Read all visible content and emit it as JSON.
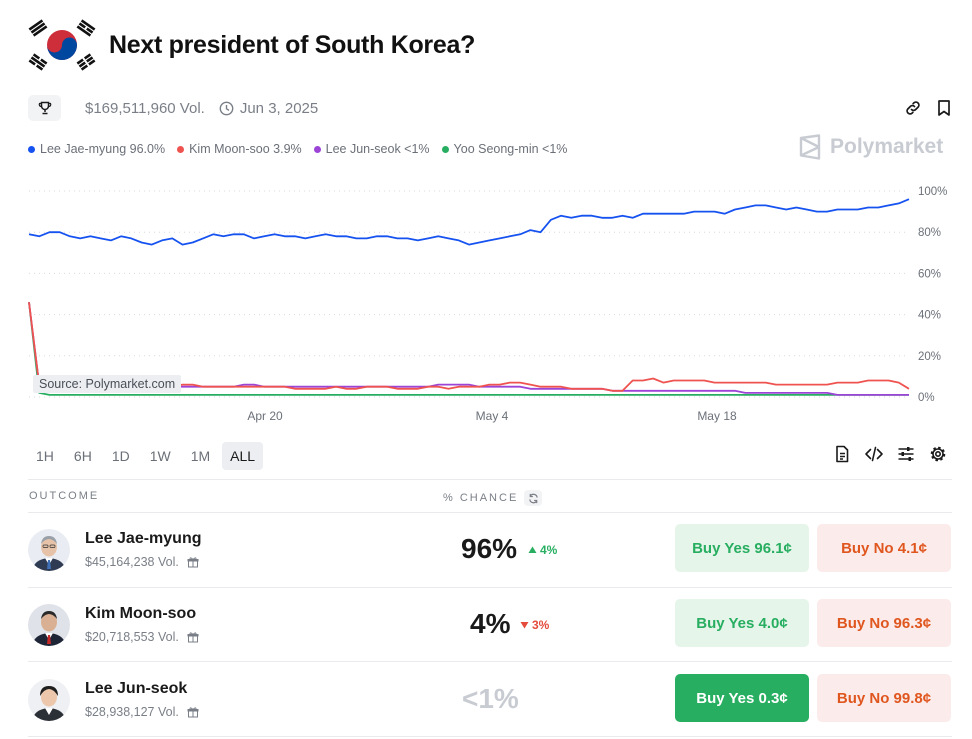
{
  "market": {
    "title": "Next president of South Korea?",
    "volume": "$169,511,960 Vol.",
    "end_date": "Jun 3, 2025",
    "brand": "Polymarket"
  },
  "legend": [
    {
      "label": "Lee Jae-myung 96.0%",
      "color": "#1652f0"
    },
    {
      "label": "Kim Moon-soo 3.9%",
      "color": "#ef5350"
    },
    {
      "label": "Lee Jun-seok <1%",
      "color": "#9b44d6"
    },
    {
      "label": "Yoo Seong-min <1%",
      "color": "#27ae60"
    }
  ],
  "chart_data": {
    "type": "line",
    "x_tick_labels": [
      "Apr 20",
      "May 4",
      "May 18"
    ],
    "y_tick_labels": [
      "100%",
      "80%",
      "60%",
      "40%",
      "20%",
      "0%"
    ],
    "ylim": [
      0,
      100
    ],
    "grid": "dotted horizontal",
    "source_label": "Source: Polymarket.com",
    "series": [
      {
        "name": "Lee Jae-myung",
        "color": "#1652f0",
        "values": [
          79,
          78,
          80,
          80,
          78,
          77,
          78,
          77,
          76,
          78,
          77,
          75,
          74,
          76,
          77,
          74,
          75,
          77,
          79,
          78,
          79,
          79,
          77,
          78,
          79,
          78,
          78,
          77,
          78,
          79,
          78,
          78,
          77,
          77,
          78,
          78,
          77,
          77,
          76,
          77,
          78,
          77,
          76,
          74,
          75,
          76,
          77,
          78,
          79,
          81,
          80,
          86,
          88,
          87,
          88,
          88,
          87,
          87,
          88,
          87,
          89,
          89,
          89,
          89,
          89,
          90,
          90,
          90,
          89,
          91,
          92,
          93,
          93,
          92,
          91,
          92,
          91,
          90,
          90,
          91,
          91,
          91,
          92,
          92,
          93,
          94,
          96
        ]
      },
      {
        "name": "Kim Moon-soo",
        "color": "#ef5350",
        "values": [
          46,
          6,
          5,
          5,
          5,
          5,
          5,
          5,
          5,
          4,
          4,
          5,
          5,
          5,
          5,
          6,
          6,
          5,
          5,
          5,
          5,
          5,
          5,
          5,
          5,
          5,
          4,
          4,
          4,
          4,
          5,
          4,
          4,
          5,
          5,
          5,
          4,
          4,
          4,
          5,
          5,
          4,
          5,
          5,
          5,
          6,
          6,
          7,
          7,
          6,
          5,
          5,
          5,
          4,
          4,
          4,
          4,
          3,
          3,
          8,
          8,
          9,
          7,
          8,
          8,
          8,
          8,
          7,
          7,
          7,
          7,
          7,
          7,
          6,
          6,
          6,
          6,
          6,
          6,
          7,
          7,
          7,
          8,
          8,
          8,
          7,
          4
        ]
      },
      {
        "name": "Lee Jun-seok",
        "color": "#9b44d6",
        "values": [
          46,
          6,
          6,
          6,
          6,
          6,
          5,
          5,
          5,
          5,
          5,
          5,
          5,
          5,
          5,
          5,
          5,
          5,
          5,
          5,
          5,
          6,
          6,
          5,
          5,
          5,
          5,
          5,
          5,
          5,
          5,
          5,
          5,
          5,
          5,
          5,
          5,
          5,
          5,
          5,
          6,
          6,
          6,
          6,
          5,
          5,
          5,
          5,
          5,
          4,
          4,
          4,
          4,
          4,
          4,
          4,
          4,
          3,
          3,
          3,
          3,
          3,
          3,
          3,
          3,
          3,
          3,
          3,
          3,
          3,
          2,
          2,
          2,
          2,
          2,
          2,
          2,
          2,
          2,
          1,
          1,
          1,
          1,
          1,
          1,
          1,
          1
        ]
      },
      {
        "name": "Yoo Seong-min",
        "color": "#27ae60",
        "values": [
          46,
          2,
          1,
          1,
          1,
          1,
          1,
          1,
          1,
          1,
          1,
          1,
          1,
          1,
          1,
          1,
          1,
          1,
          1,
          1,
          1,
          1,
          1,
          1,
          1,
          1,
          1,
          1,
          1,
          1,
          1,
          1,
          1,
          1,
          1,
          1,
          1,
          1,
          1,
          1,
          1,
          1,
          1,
          1,
          1,
          1,
          1,
          1,
          1,
          1,
          1,
          1,
          1,
          1,
          1,
          1,
          1,
          1,
          1,
          1,
          1,
          1,
          1,
          1,
          1,
          1,
          1,
          1,
          1,
          1,
          1,
          1,
          1,
          1,
          1,
          1,
          1,
          1,
          1,
          1,
          1,
          1,
          1,
          1,
          1,
          1,
          1
        ]
      }
    ]
  },
  "time_ranges": {
    "items": [
      "1H",
      "6H",
      "1D",
      "1W",
      "1M",
      "ALL"
    ],
    "selected": "ALL"
  },
  "table": {
    "outcome_header": "OUTCOME",
    "chance_header": "% CHANCE",
    "rows": [
      {
        "name": "Lee Jae-myung",
        "volume": "$45,164,238 Vol.",
        "chance": "96%",
        "change": "4%",
        "direction": "up",
        "yes": "Buy Yes 96.1¢",
        "no": "Buy No 4.1¢",
        "yes_style": "light"
      },
      {
        "name": "Kim Moon-soo",
        "volume": "$20,718,553 Vol.",
        "chance": "4%",
        "change": "3%",
        "direction": "down",
        "yes": "Buy Yes 4.0¢",
        "no": "Buy No 96.3¢",
        "yes_style": "light"
      },
      {
        "name": "Lee Jun-seok",
        "volume": "$28,938,127 Vol.",
        "chance": "<1%",
        "change": "",
        "direction": "none",
        "yes": "Buy Yes 0.3¢",
        "no": "Buy No 99.8¢",
        "yes_style": "solid"
      }
    ]
  },
  "icons": [
    "korea-flag",
    "trophy-icon",
    "clock-icon",
    "link-icon",
    "bookmark-icon",
    "polymarket-logo",
    "document-icon",
    "code-icon",
    "sliders-icon",
    "gear-icon",
    "refresh-icon",
    "gift-icon"
  ]
}
